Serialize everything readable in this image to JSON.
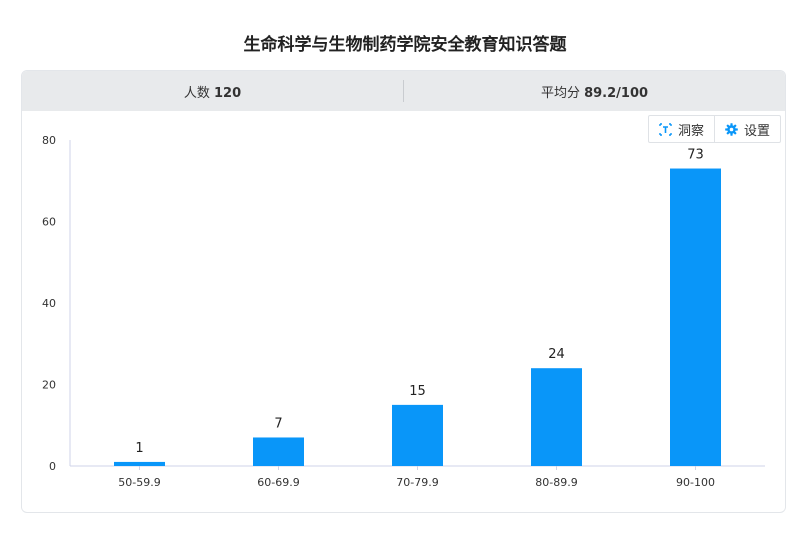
{
  "title": "生命科学与生物制药学院安全教育知识答题",
  "stats": {
    "count_label": "人数",
    "count_value": "120",
    "avg_label": "平均分",
    "avg_value": "89.2/100"
  },
  "toolbar": {
    "insight_label": "洞察",
    "settings_label": "设置"
  },
  "colors": {
    "bar": "#0996f9",
    "axis": "#cfd3e8"
  },
  "chart_data": {
    "type": "bar",
    "title": "",
    "xlabel": "",
    "ylabel": "",
    "categories": [
      "50-59.9",
      "60-69.9",
      "70-79.9",
      "80-89.9",
      "90-100"
    ],
    "values": [
      1,
      7,
      15,
      24,
      73
    ],
    "ylim": [
      0,
      80
    ],
    "yticks": [
      0,
      20,
      40,
      60,
      80
    ],
    "grid": false,
    "data_labels": true
  }
}
